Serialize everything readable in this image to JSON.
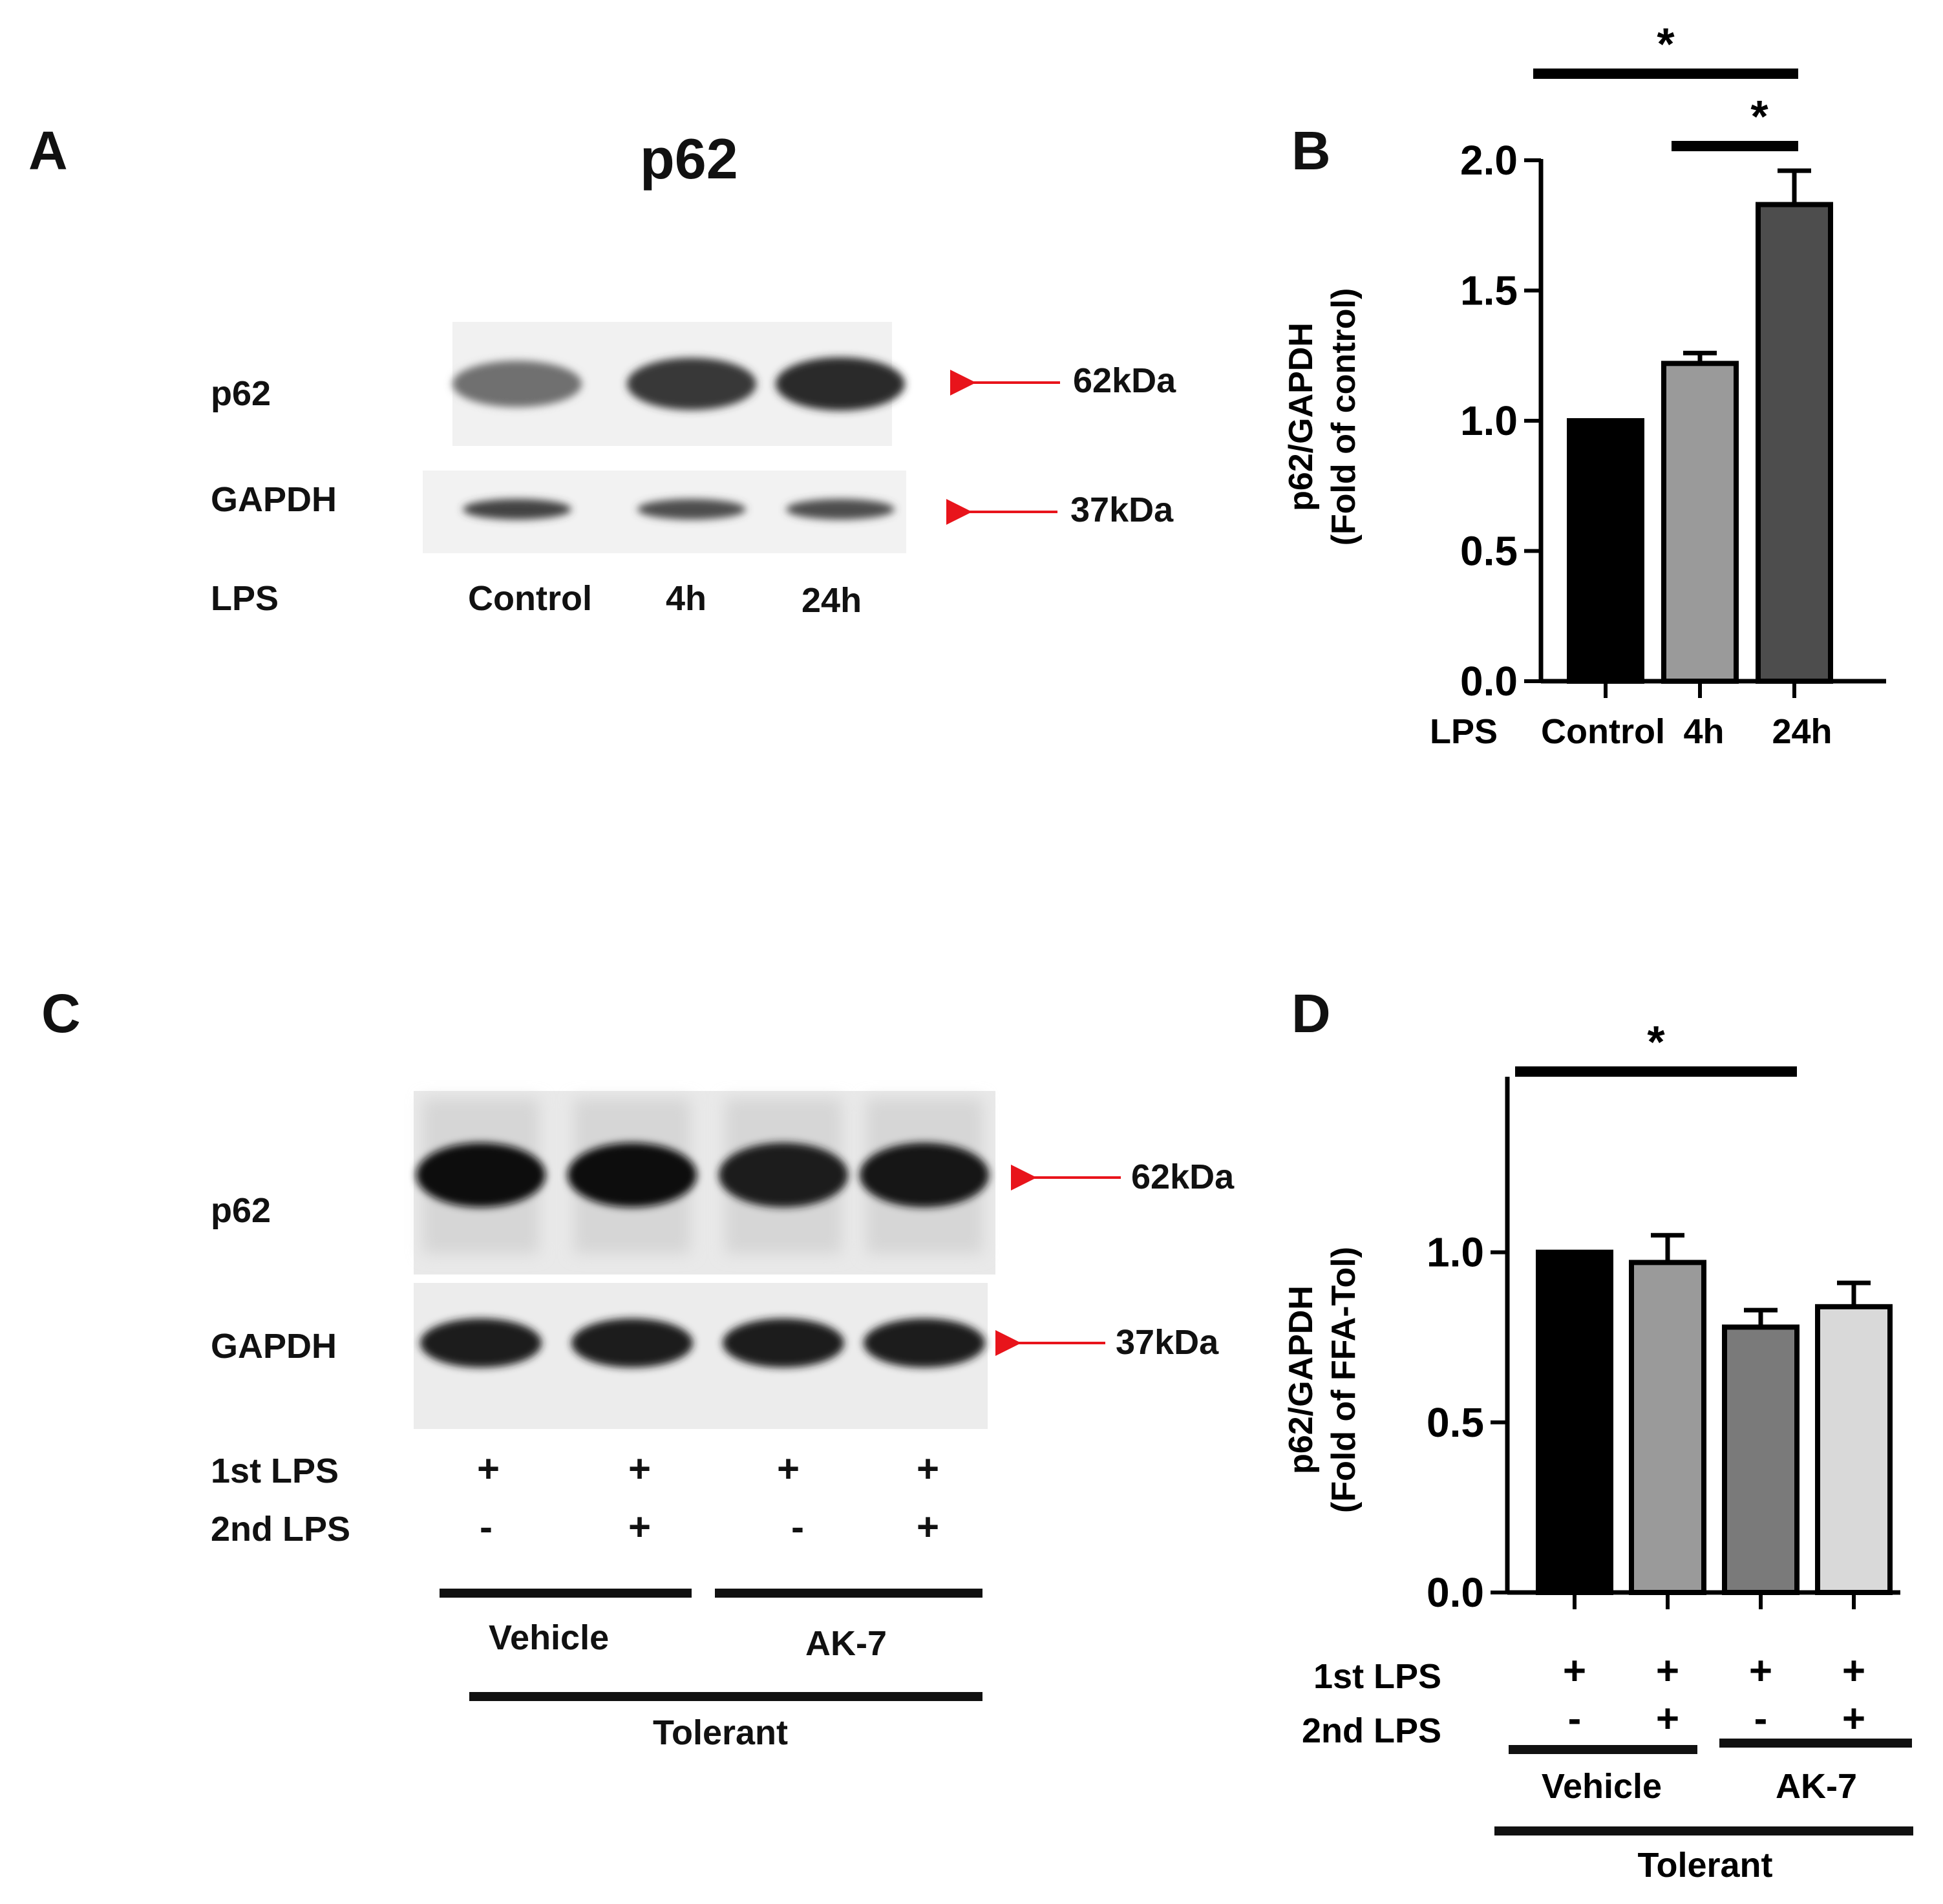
{
  "figure": {
    "panel_letters": [
      "A",
      "B",
      "C",
      "D"
    ]
  },
  "panel_a": {
    "title": "p62",
    "rows": [
      "p62",
      "GAPDH"
    ],
    "lps_label": "LPS",
    "lanes": [
      "Control",
      "4h",
      "24h"
    ],
    "markers": [
      "62kDa",
      "37kDa"
    ],
    "band_intensity": {
      "p62": [
        0.55,
        0.8,
        0.85
      ],
      "GAPDH": [
        0.75,
        0.7,
        0.7
      ]
    }
  },
  "panel_c": {
    "rows": [
      "p62",
      "GAPDH"
    ],
    "markers": [
      "62kDa",
      "37kDa"
    ],
    "first_lps_label": "1st LPS",
    "second_lps_label": "2nd LPS",
    "first_lps": [
      "+",
      "+",
      "+",
      "+"
    ],
    "second_lps": [
      "-",
      "+",
      "-",
      "+"
    ],
    "groups": [
      "Vehicle",
      "AK-7"
    ],
    "overall_group": "Tolerant",
    "band_intensity": {
      "p62": [
        0.98,
        0.97,
        0.93,
        0.95
      ],
      "GAPDH": [
        0.92,
        0.92,
        0.92,
        0.92
      ]
    }
  },
  "chart_data": [
    {
      "type": "bar",
      "panel": "B",
      "ylabel_lines": [
        "p62/GAPDH",
        "(Fold of control)"
      ],
      "x_prefix_label": "LPS",
      "categories": [
        "Control",
        "4h",
        "24h"
      ],
      "values": [
        1.0,
        1.22,
        1.83
      ],
      "errors": [
        0.0,
        0.04,
        0.13
      ],
      "colors": [
        "#000000",
        "#9a9a9a",
        "#4d4d4d"
      ],
      "ylim": [
        0,
        2.0
      ],
      "yticks": [
        "0.0",
        "0.5",
        "1.0",
        "1.5",
        "2.0"
      ],
      "significance": [
        {
          "from": 0,
          "to": 2,
          "label": "*"
        },
        {
          "from": 1,
          "to": 2,
          "label": "*"
        }
      ]
    },
    {
      "type": "bar",
      "panel": "D",
      "ylabel_lines": [
        "p62/GAPDH",
        "(Fold of FFA-Tol)"
      ],
      "first_lps_label": "1st LPS",
      "second_lps_label": "2nd LPS",
      "first_lps": [
        "+",
        "+",
        "+",
        "+"
      ],
      "second_lps": [
        "-",
        "+",
        "-",
        "+"
      ],
      "groups": [
        "Vehicle",
        "AK-7"
      ],
      "overall_group": "Tolerant",
      "values": [
        1.0,
        0.97,
        0.78,
        0.84
      ],
      "errors": [
        0.0,
        0.08,
        0.05,
        0.07
      ],
      "colors": [
        "#000000",
        "#9a9a9a",
        "#7a7a7a",
        "#d9d9d9"
      ],
      "ylim": [
        0,
        1.25
      ],
      "yticks": [
        "0.0",
        "0.5",
        "1.0"
      ],
      "significance": [
        {
          "from": 0,
          "to": 2,
          "label": "*"
        }
      ]
    }
  ]
}
